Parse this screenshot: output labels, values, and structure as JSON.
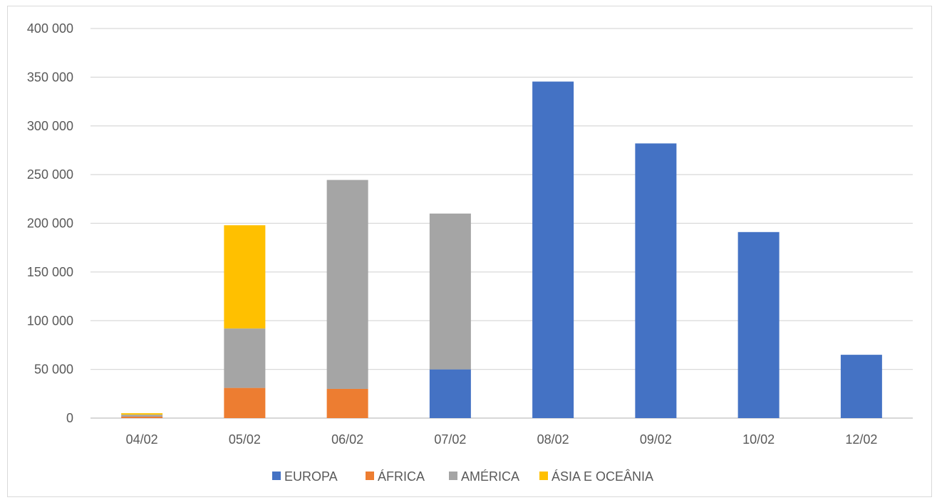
{
  "chart_data": {
    "type": "bar",
    "stacked": true,
    "categories": [
      "04/02",
      "05/02",
      "06/02",
      "07/02",
      "08/02",
      "09/02",
      "10/02",
      "12/02"
    ],
    "ylim": [
      0,
      400000
    ],
    "yticks": [
      0,
      50000,
      100000,
      150000,
      200000,
      250000,
      300000,
      350000,
      400000
    ],
    "ytick_labels": [
      "0",
      "50 000",
      "100 000",
      "150 000",
      "200 000",
      "250 000",
      "300 000",
      "350 000",
      "400 000"
    ],
    "grid": true,
    "legend_position": "bottom",
    "series": [
      {
        "name": "EUROPA",
        "color": "#4472c4",
        "values": [
          0,
          0,
          0,
          50000,
          345500,
          282000,
          191000,
          65000
        ]
      },
      {
        "name": "ÁFRICA",
        "color": "#ed7d31",
        "values": [
          1500,
          31000,
          30000,
          0,
          0,
          0,
          0,
          0
        ]
      },
      {
        "name": "AMÉRICA",
        "color": "#a5a5a5",
        "values": [
          2000,
          61000,
          214500,
          160000,
          0,
          0,
          0,
          0
        ]
      },
      {
        "name": "ÁSIA E OCEÂNIA",
        "color": "#ffc000",
        "values": [
          1500,
          106000,
          0,
          0,
          0,
          0,
          0,
          0
        ]
      }
    ]
  }
}
